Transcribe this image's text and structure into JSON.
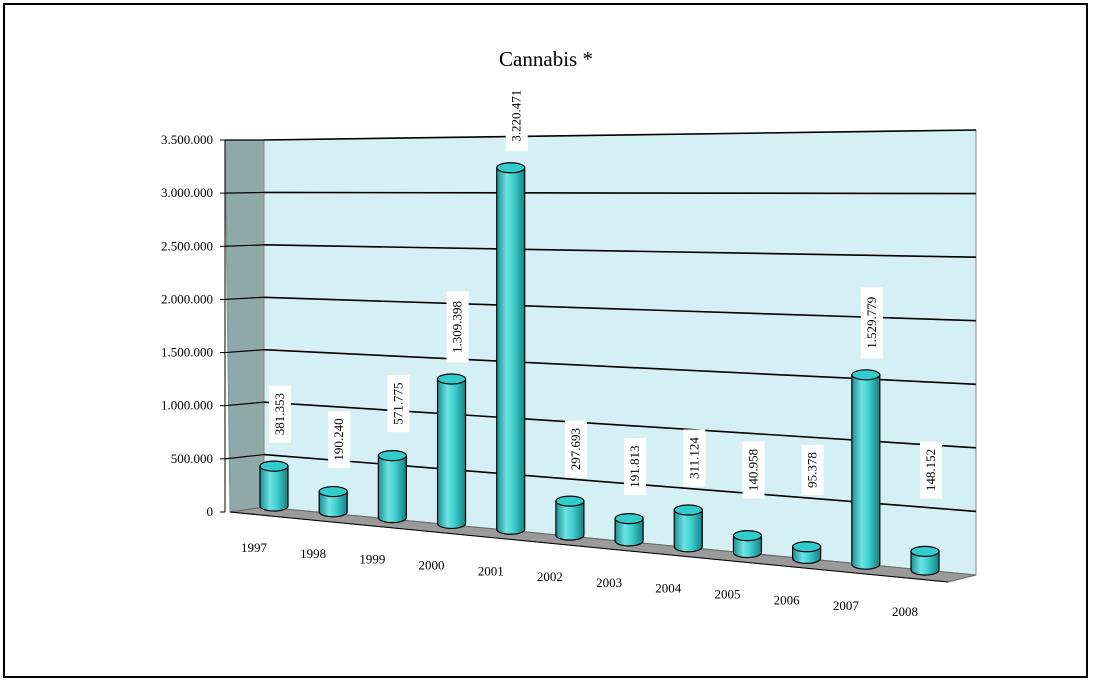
{
  "chart_data": {
    "type": "bar",
    "title": "Cannabis *",
    "xlabel": "",
    "ylabel": "",
    "categories": [
      "1997",
      "1998",
      "1999",
      "2000",
      "2001",
      "2002",
      "2003",
      "2004",
      "2005",
      "2006",
      "2007",
      "2008"
    ],
    "values": [
      381353,
      190240,
      571775,
      1309398,
      3220471,
      297693,
      191813,
      311124,
      140958,
      95378,
      1529779,
      148152
    ],
    "value_labels": [
      "381.353",
      "190.240",
      "571.775",
      "1.309.398",
      "3.220.471",
      "297.693",
      "191.813",
      "311.124",
      "140.958",
      "95.378",
      "1.529.779",
      "148.152"
    ],
    "ylim": [
      0,
      3500000
    ],
    "y_ticks": [
      0,
      500000,
      1000000,
      1500000,
      2000000,
      2500000,
      3000000,
      3500000
    ],
    "y_tick_labels": [
      "0",
      "500.000",
      "1.000.000",
      "1.500.000",
      "2.000.000",
      "2.500.000",
      "3.000.000",
      "3.500.000"
    ],
    "grid": true,
    "legend": "none",
    "style": "3d-cylinder",
    "colors": {
      "bar": "#33cccc",
      "bar_dark": "#1f9a9a",
      "wall": "#d4f0f5",
      "side_wall": "#8fa8a8",
      "floor": "#9a9a9a"
    }
  }
}
